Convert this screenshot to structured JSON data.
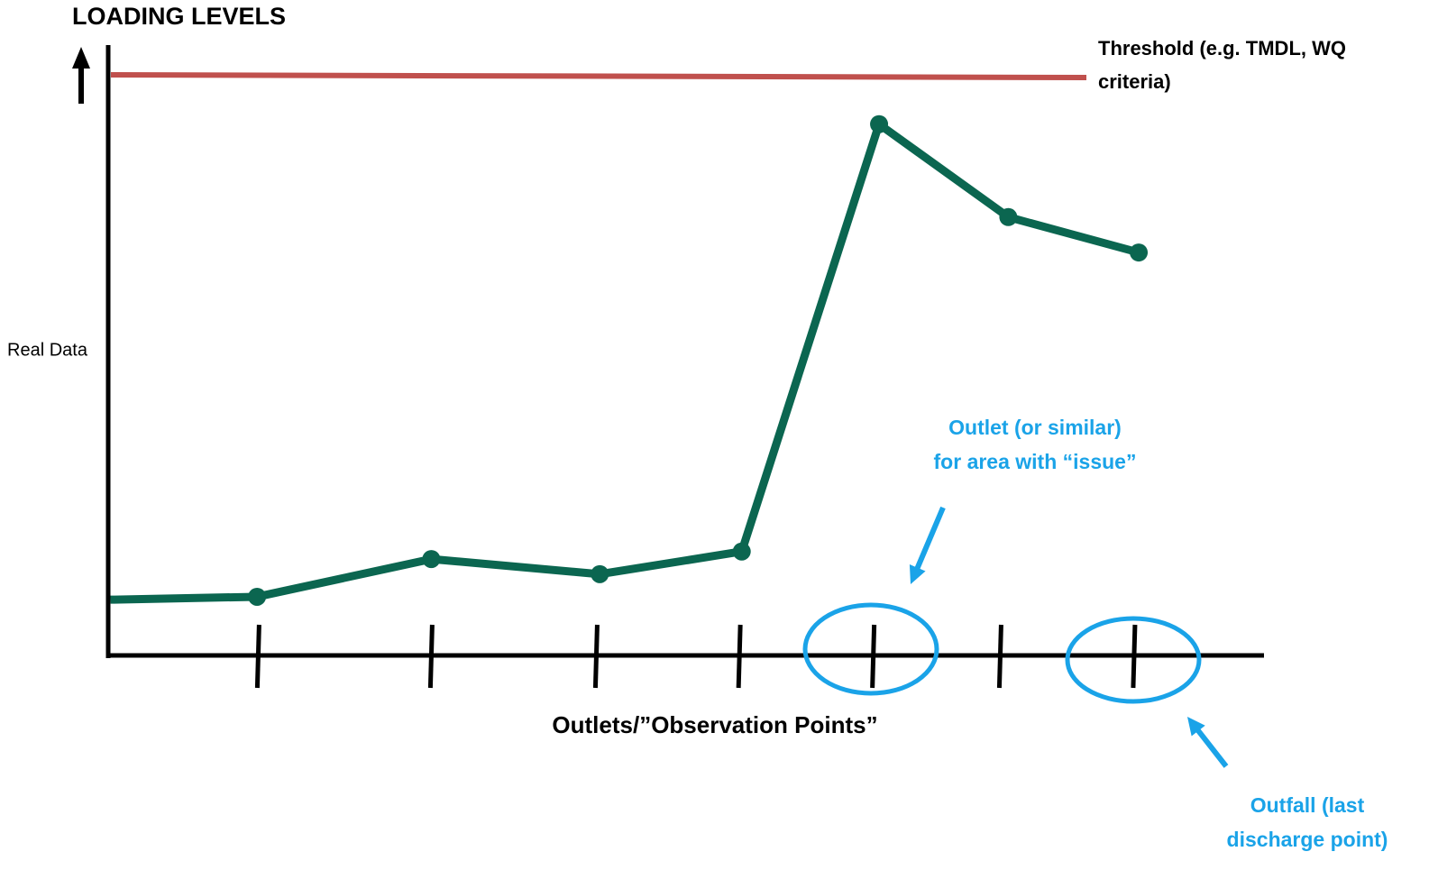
{
  "chart_data": {
    "type": "line",
    "title": "LOADING LEVELS",
    "y_label": "Real Data",
    "x_label": "Outlets/”Observation Points”",
    "xlim": [
      0,
      100
    ],
    "ylim": [
      0,
      100
    ],
    "xticks": [
      13,
      28,
      42.3,
      54.7,
      66.3,
      77.3,
      88.9
    ],
    "x": [
      0.2,
      12.9,
      28,
      42.6,
      54.9,
      66.8,
      78,
      89.3
    ],
    "series": [
      {
        "color": "#0b6650",
        "values": [
          9.6,
          10.1,
          16.6,
          14,
          17.9,
          91.5,
          75.5,
          69.4
        ]
      }
    ],
    "threshold": {
      "value": 100,
      "color": "#c0504d",
      "label": [
        "Threshold (e.g. TMDL, WQ",
        "criteria)"
      ]
    },
    "annotations": [
      {
        "text": [
          "Outlet (or similar)",
          "for area with “issue”"
        ],
        "tick": 4,
        "color": "#1aa3e8"
      },
      {
        "text": [
          "Outfall (last",
          "discharge point)"
        ],
        "tick": 6,
        "color": "#1aa3e8"
      }
    ]
  }
}
